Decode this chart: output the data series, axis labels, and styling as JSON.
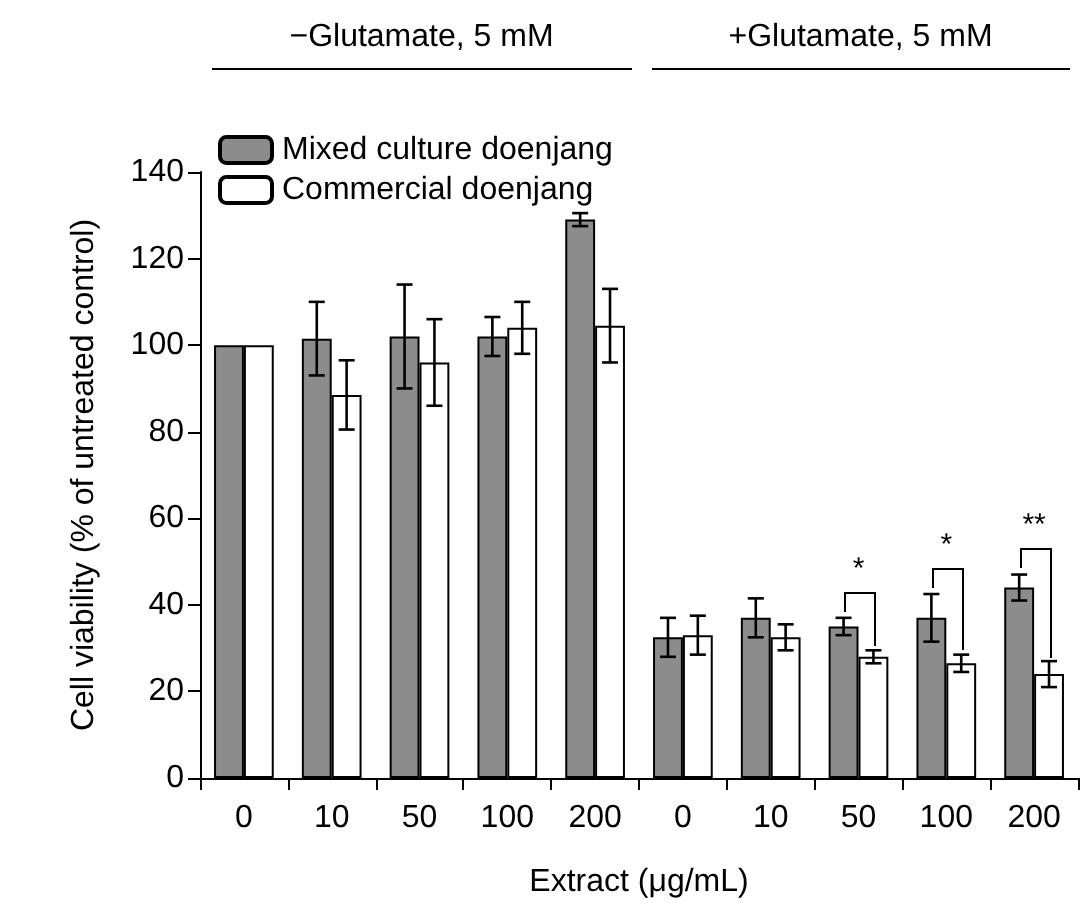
{
  "chart_data": {
    "type": "bar",
    "xlabel": "Extract (μg/mL)",
    "ylabel": "Cell viability (% of untreated control)",
    "categories": [
      "0",
      "10",
      "50",
      "100",
      "200",
      "0",
      "10",
      "50",
      "100",
      "200"
    ],
    "series": [
      {
        "name": "Mixed culture doenjang",
        "color": "#8c8c8c",
        "values": [
          100,
          101.5,
          102,
          102,
          129,
          32.5,
          37,
          35,
          37,
          44
        ],
        "errors": [
          null,
          8.5,
          12,
          4.5,
          1.5,
          4.5,
          4.5,
          2,
          5.5,
          3
        ]
      },
      {
        "name": "Commercial doenjang",
        "color": "#ffffff",
        "values": [
          100,
          88.5,
          96,
          104,
          104.5,
          33,
          32.5,
          28,
          26.5,
          24
        ],
        "errors": [
          null,
          8,
          10,
          6,
          8.5,
          4.5,
          3,
          1.5,
          2,
          3
        ]
      }
    ],
    "ylim": [
      0,
      140
    ],
    "yticks": [
      0,
      20,
      40,
      60,
      80,
      100,
      120,
      140
    ],
    "grid": false,
    "legend": "top left",
    "annotations": [
      "−Glutamate, 5 mM",
      "+Glutamate, 5 mM",
      "*",
      "*",
      "**"
    ]
  }
}
